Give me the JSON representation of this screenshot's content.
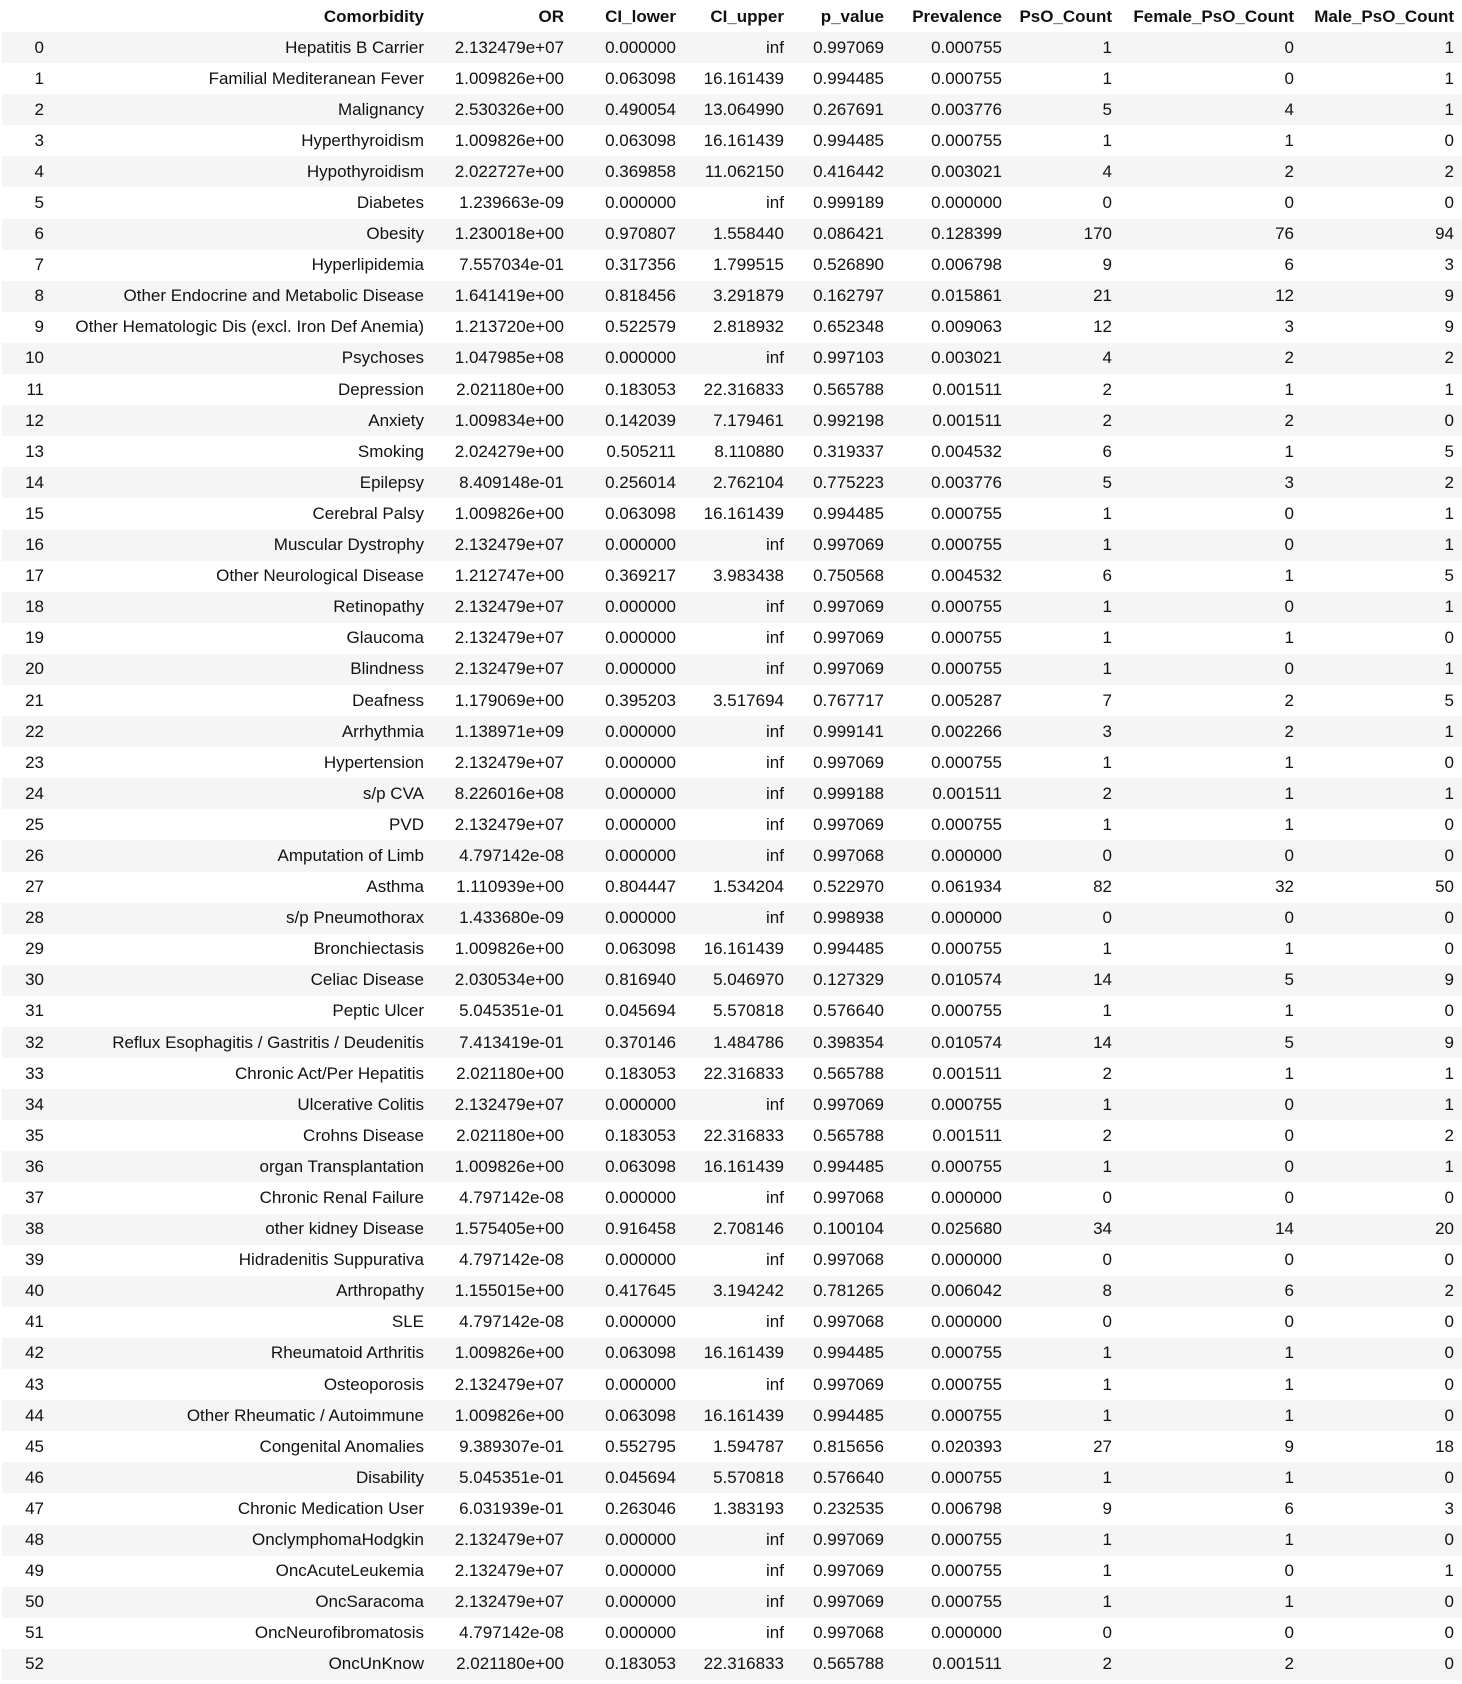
{
  "table": {
    "columns": [
      "",
      "Comorbidity",
      "OR",
      "CI_lower",
      "CI_upper",
      "p_value",
      "Prevalence",
      "PsO_Count",
      "Female_PsO_Count",
      "Male_PsO_Count"
    ],
    "rows": [
      [
        "0",
        "Hepatitis B Carrier",
        "2.132479e+07",
        "0.000000",
        "inf",
        "0.997069",
        "0.000755",
        "1",
        "0",
        "1"
      ],
      [
        "1",
        "Familial Mediteranean Fever",
        "1.009826e+00",
        "0.063098",
        "16.161439",
        "0.994485",
        "0.000755",
        "1",
        "0",
        "1"
      ],
      [
        "2",
        "Malignancy",
        "2.530326e+00",
        "0.490054",
        "13.064990",
        "0.267691",
        "0.003776",
        "5",
        "4",
        "1"
      ],
      [
        "3",
        "Hyperthyroidism",
        "1.009826e+00",
        "0.063098",
        "16.161439",
        "0.994485",
        "0.000755",
        "1",
        "1",
        "0"
      ],
      [
        "4",
        "Hypothyroidism",
        "2.022727e+00",
        "0.369858",
        "11.062150",
        "0.416442",
        "0.003021",
        "4",
        "2",
        "2"
      ],
      [
        "5",
        "Diabetes",
        "1.239663e-09",
        "0.000000",
        "inf",
        "0.999189",
        "0.000000",
        "0",
        "0",
        "0"
      ],
      [
        "6",
        "Obesity",
        "1.230018e+00",
        "0.970807",
        "1.558440",
        "0.086421",
        "0.128399",
        "170",
        "76",
        "94"
      ],
      [
        "7",
        "Hyperlipidemia",
        "7.557034e-01",
        "0.317356",
        "1.799515",
        "0.526890",
        "0.006798",
        "9",
        "6",
        "3"
      ],
      [
        "8",
        "Other Endocrine and Metabolic Disease",
        "1.641419e+00",
        "0.818456",
        "3.291879",
        "0.162797",
        "0.015861",
        "21",
        "12",
        "9"
      ],
      [
        "9",
        "Other Hematologic Dis (excl. Iron Def Anemia)",
        "1.213720e+00",
        "0.522579",
        "2.818932",
        "0.652348",
        "0.009063",
        "12",
        "3",
        "9"
      ],
      [
        "10",
        "Psychoses",
        "1.047985e+08",
        "0.000000",
        "inf",
        "0.997103",
        "0.003021",
        "4",
        "2",
        "2"
      ],
      [
        "11",
        "Depression",
        "2.021180e+00",
        "0.183053",
        "22.316833",
        "0.565788",
        "0.001511",
        "2",
        "1",
        "1"
      ],
      [
        "12",
        "Anxiety",
        "1.009834e+00",
        "0.142039",
        "7.179461",
        "0.992198",
        "0.001511",
        "2",
        "2",
        "0"
      ],
      [
        "13",
        "Smoking",
        "2.024279e+00",
        "0.505211",
        "8.110880",
        "0.319337",
        "0.004532",
        "6",
        "1",
        "5"
      ],
      [
        "14",
        "Epilepsy",
        "8.409148e-01",
        "0.256014",
        "2.762104",
        "0.775223",
        "0.003776",
        "5",
        "3",
        "2"
      ],
      [
        "15",
        "Cerebral Palsy",
        "1.009826e+00",
        "0.063098",
        "16.161439",
        "0.994485",
        "0.000755",
        "1",
        "0",
        "1"
      ],
      [
        "16",
        "Muscular Dystrophy",
        "2.132479e+07",
        "0.000000",
        "inf",
        "0.997069",
        "0.000755",
        "1",
        "0",
        "1"
      ],
      [
        "17",
        "Other Neurological Disease",
        "1.212747e+00",
        "0.369217",
        "3.983438",
        "0.750568",
        "0.004532",
        "6",
        "1",
        "5"
      ],
      [
        "18",
        "Retinopathy",
        "2.132479e+07",
        "0.000000",
        "inf",
        "0.997069",
        "0.000755",
        "1",
        "0",
        "1"
      ],
      [
        "19",
        "Glaucoma",
        "2.132479e+07",
        "0.000000",
        "inf",
        "0.997069",
        "0.000755",
        "1",
        "1",
        "0"
      ],
      [
        "20",
        "Blindness",
        "2.132479e+07",
        "0.000000",
        "inf",
        "0.997069",
        "0.000755",
        "1",
        "0",
        "1"
      ],
      [
        "21",
        "Deafness",
        "1.179069e+00",
        "0.395203",
        "3.517694",
        "0.767717",
        "0.005287",
        "7",
        "2",
        "5"
      ],
      [
        "22",
        "Arrhythmia",
        "1.138971e+09",
        "0.000000",
        "inf",
        "0.999141",
        "0.002266",
        "3",
        "2",
        "1"
      ],
      [
        "23",
        "Hypertension",
        "2.132479e+07",
        "0.000000",
        "inf",
        "0.997069",
        "0.000755",
        "1",
        "1",
        "0"
      ],
      [
        "24",
        "s/p CVA",
        "8.226016e+08",
        "0.000000",
        "inf",
        "0.999188",
        "0.001511",
        "2",
        "1",
        "1"
      ],
      [
        "25",
        "PVD",
        "2.132479e+07",
        "0.000000",
        "inf",
        "0.997069",
        "0.000755",
        "1",
        "1",
        "0"
      ],
      [
        "26",
        "Amputation of Limb",
        "4.797142e-08",
        "0.000000",
        "inf",
        "0.997068",
        "0.000000",
        "0",
        "0",
        "0"
      ],
      [
        "27",
        "Asthma",
        "1.110939e+00",
        "0.804447",
        "1.534204",
        "0.522970",
        "0.061934",
        "82",
        "32",
        "50"
      ],
      [
        "28",
        "s/p Pneumothorax",
        "1.433680e-09",
        "0.000000",
        "inf",
        "0.998938",
        "0.000000",
        "0",
        "0",
        "0"
      ],
      [
        "29",
        "Bronchiectasis",
        "1.009826e+00",
        "0.063098",
        "16.161439",
        "0.994485",
        "0.000755",
        "1",
        "1",
        "0"
      ],
      [
        "30",
        "Celiac Disease",
        "2.030534e+00",
        "0.816940",
        "5.046970",
        "0.127329",
        "0.010574",
        "14",
        "5",
        "9"
      ],
      [
        "31",
        "Peptic Ulcer",
        "5.045351e-01",
        "0.045694",
        "5.570818",
        "0.576640",
        "0.000755",
        "1",
        "1",
        "0"
      ],
      [
        "32",
        "Reflux Esophagitis / Gastritis / Deudenitis",
        "7.413419e-01",
        "0.370146",
        "1.484786",
        "0.398354",
        "0.010574",
        "14",
        "5",
        "9"
      ],
      [
        "33",
        "Chronic Act/Per Hepatitis",
        "2.021180e+00",
        "0.183053",
        "22.316833",
        "0.565788",
        "0.001511",
        "2",
        "1",
        "1"
      ],
      [
        "34",
        "Ulcerative Colitis",
        "2.132479e+07",
        "0.000000",
        "inf",
        "0.997069",
        "0.000755",
        "1",
        "0",
        "1"
      ],
      [
        "35",
        "Crohns Disease",
        "2.021180e+00",
        "0.183053",
        "22.316833",
        "0.565788",
        "0.001511",
        "2",
        "0",
        "2"
      ],
      [
        "36",
        "organ Transplantation",
        "1.009826e+00",
        "0.063098",
        "16.161439",
        "0.994485",
        "0.000755",
        "1",
        "0",
        "1"
      ],
      [
        "37",
        "Chronic Renal Failure",
        "4.797142e-08",
        "0.000000",
        "inf",
        "0.997068",
        "0.000000",
        "0",
        "0",
        "0"
      ],
      [
        "38",
        "other kidney Disease",
        "1.575405e+00",
        "0.916458",
        "2.708146",
        "0.100104",
        "0.025680",
        "34",
        "14",
        "20"
      ],
      [
        "39",
        "Hidradenitis Suppurativa",
        "4.797142e-08",
        "0.000000",
        "inf",
        "0.997068",
        "0.000000",
        "0",
        "0",
        "0"
      ],
      [
        "40",
        "Arthropathy",
        "1.155015e+00",
        "0.417645",
        "3.194242",
        "0.781265",
        "0.006042",
        "8",
        "6",
        "2"
      ],
      [
        "41",
        "SLE",
        "4.797142e-08",
        "0.000000",
        "inf",
        "0.997068",
        "0.000000",
        "0",
        "0",
        "0"
      ],
      [
        "42",
        "Rheumatoid Arthritis",
        "1.009826e+00",
        "0.063098",
        "16.161439",
        "0.994485",
        "0.000755",
        "1",
        "1",
        "0"
      ],
      [
        "43",
        "Osteoporosis",
        "2.132479e+07",
        "0.000000",
        "inf",
        "0.997069",
        "0.000755",
        "1",
        "1",
        "0"
      ],
      [
        "44",
        "Other Rheumatic / Autoimmune",
        "1.009826e+00",
        "0.063098",
        "16.161439",
        "0.994485",
        "0.000755",
        "1",
        "1",
        "0"
      ],
      [
        "45",
        "Congenital Anomalies",
        "9.389307e-01",
        "0.552795",
        "1.594787",
        "0.815656",
        "0.020393",
        "27",
        "9",
        "18"
      ],
      [
        "46",
        "Disability",
        "5.045351e-01",
        "0.045694",
        "5.570818",
        "0.576640",
        "0.000755",
        "1",
        "1",
        "0"
      ],
      [
        "47",
        "Chronic Medication User",
        "6.031939e-01",
        "0.263046",
        "1.383193",
        "0.232535",
        "0.006798",
        "9",
        "6",
        "3"
      ],
      [
        "48",
        "OnclymphomaHodgkin",
        "2.132479e+07",
        "0.000000",
        "inf",
        "0.997069",
        "0.000755",
        "1",
        "1",
        "0"
      ],
      [
        "49",
        "OncAcuteLeukemia",
        "2.132479e+07",
        "0.000000",
        "inf",
        "0.997069",
        "0.000755",
        "1",
        "0",
        "1"
      ],
      [
        "50",
        "OncSaracoma",
        "2.132479e+07",
        "0.000000",
        "inf",
        "0.997069",
        "0.000755",
        "1",
        "1",
        "0"
      ],
      [
        "51",
        "OncNeurofibromatosis",
        "4.797142e-08",
        "0.000000",
        "inf",
        "0.997068",
        "0.000000",
        "0",
        "0",
        "0"
      ],
      [
        "52",
        "OncUnKnow",
        "2.021180e+00",
        "0.183053",
        "22.316833",
        "0.565788",
        "0.001511",
        "2",
        "2",
        "0"
      ]
    ]
  }
}
